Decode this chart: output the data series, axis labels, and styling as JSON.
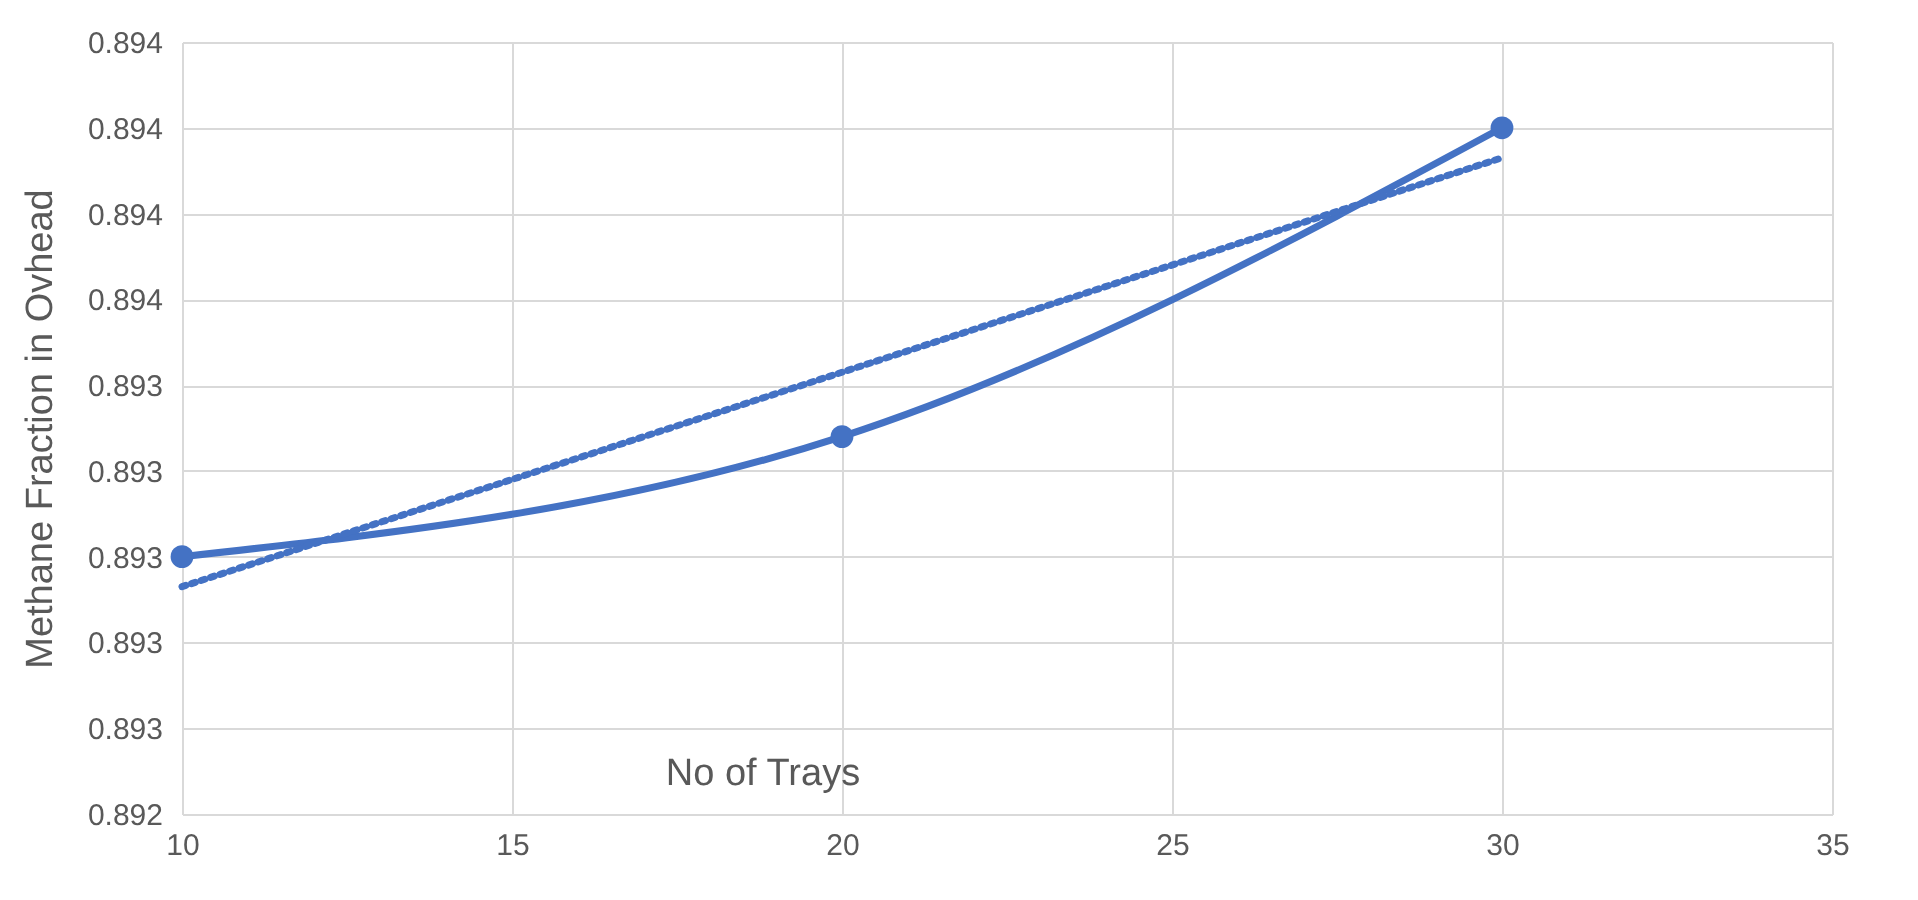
{
  "chart_data": {
    "type": "line",
    "xlabel": "No of Trays",
    "ylabel": "Methane Fraction in Ovhead",
    "x": [
      10,
      20,
      30
    ],
    "series": [
      {
        "color": "#4472c4",
        "values": [
          0.893,
          0.89328,
          0.894
        ],
        "marker": "circle",
        "line_style": "solid"
      },
      {
        "type": "line",
        "color": "#4472c4",
        "x": [
          10,
          30
        ],
        "values": [
          0.89293,
          0.89393
        ],
        "marker": "none",
        "line_style": "dotted"
      }
    ],
    "xlim": [
      10,
      35
    ],
    "xticks": [
      10,
      15,
      20,
      25,
      30,
      35
    ],
    "ylim": [
      0.8924,
      0.8942
    ],
    "yticks": [
      {
        "value": 0.8924,
        "label": "0.892"
      },
      {
        "value": 0.8926,
        "label": "0.893"
      },
      {
        "value": 0.8928,
        "label": "0.893"
      },
      {
        "value": 0.893,
        "label": "0.893"
      },
      {
        "value": 0.8932,
        "label": "0.893"
      },
      {
        "value": 0.8934,
        "label": "0.893"
      },
      {
        "value": 0.8936,
        "label": "0.894"
      },
      {
        "value": 0.8938,
        "label": "0.894"
      },
      {
        "value": 0.894,
        "label": "0.894"
      },
      {
        "value": 0.8942,
        "label": "0.894"
      }
    ],
    "grid": true
  }
}
